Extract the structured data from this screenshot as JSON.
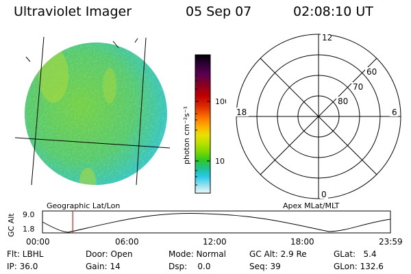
{
  "header": {
    "instrument": "Ultraviolet Imager",
    "date": "05 Sep 07",
    "time": "02:08:10 UT"
  },
  "geo_panel": {
    "label": "Geographic Lat/Lon"
  },
  "colorbar": {
    "unit_label": "photon cm⁻²s⁻¹",
    "ticks": [
      "100",
      "10"
    ],
    "colors": [
      "#000000",
      "#2a0033",
      "#5a0050",
      "#8a0020",
      "#c00000",
      "#e03000",
      "#ff7a00",
      "#ffb000",
      "#e8e000",
      "#b8e000",
      "#7cd800",
      "#30c820",
      "#20c090",
      "#28c8e8",
      "#90e0f0",
      "#e8f4f8"
    ]
  },
  "polar_panel": {
    "label": "Apex MLat/MLT",
    "mlt_labels": [
      "12",
      "18",
      "6",
      "0"
    ],
    "lat_labels": [
      "60",
      "70",
      "80"
    ]
  },
  "timeline": {
    "ylabel": "GC Alt",
    "y_ticks": [
      "9.0",
      "1.8"
    ],
    "x_ticks": [
      "00:00",
      "06:00",
      "12:00",
      "18:00",
      "23:59"
    ],
    "current_time_fraction": 0.087
  },
  "info_grid": {
    "flt": "Flt: LBHL",
    "door": "Door: Open",
    "mode": "Mode: Normal",
    "gc_alt": "GC Alt: 2.9 Re",
    "glat": "GLat:   5.4",
    "ip": "IP: 36.0",
    "gain": "Gain: 14",
    "dsp": "Dsp:    0.0",
    "seq": "Seq: 39",
    "glon": "GLon: 132.6"
  }
}
